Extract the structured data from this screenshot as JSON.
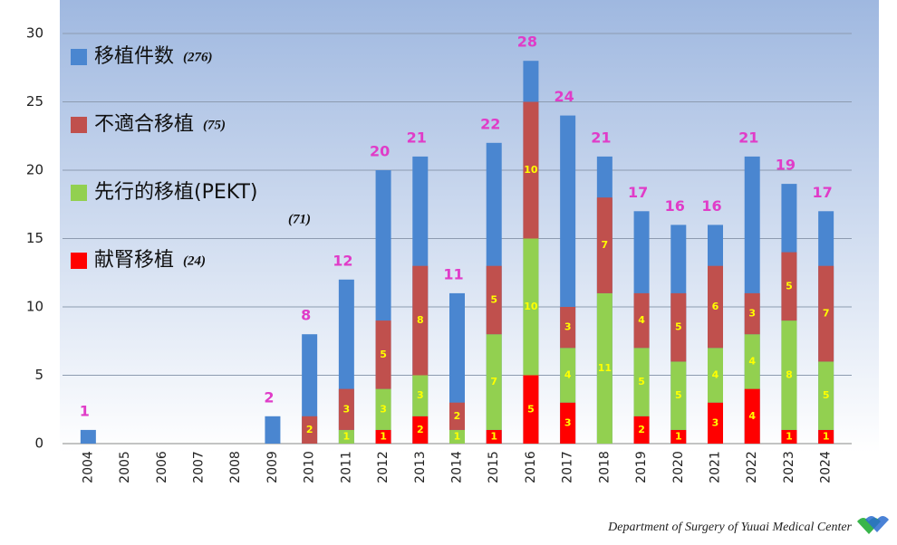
{
  "chart_data": {
    "type": "bar",
    "categories": [
      "2004",
      "2005",
      "2006",
      "2007",
      "2008",
      "2009",
      "2010",
      "2011",
      "2012",
      "2013",
      "2014",
      "2015",
      "2016",
      "2017",
      "2018",
      "2019",
      "2020",
      "2021",
      "2022",
      "2023",
      "2024"
    ],
    "total_series": {
      "name": "移植件数",
      "count_label": "(276)",
      "color": "#4a86d0",
      "values": [
        1,
        0,
        0,
        0,
        0,
        2,
        8,
        12,
        20,
        21,
        11,
        22,
        28,
        24,
        21,
        17,
        16,
        16,
        21,
        19,
        17
      ]
    },
    "series": [
      {
        "name": "献腎移植",
        "count_label": "(24)",
        "color": "#ff0000",
        "values": [
          0,
          0,
          0,
          0,
          0,
          0,
          0,
          0,
          1,
          2,
          0,
          1,
          5,
          3,
          0,
          2,
          1,
          3,
          4,
          1,
          1
        ]
      },
      {
        "name": "先行的移植(PEKT)",
        "count_label": "(71)",
        "color": "#92d050",
        "values": [
          0,
          0,
          0,
          0,
          0,
          0,
          0,
          1,
          3,
          3,
          1,
          7,
          10,
          4,
          11,
          5,
          5,
          4,
          4,
          8,
          5
        ]
      },
      {
        "name": "不適合移植",
        "count_label": "(75)",
        "color": "#c0504d",
        "values": [
          0,
          0,
          0,
          0,
          0,
          0,
          2,
          3,
          5,
          8,
          2,
          5,
          10,
          3,
          7,
          4,
          5,
          6,
          3,
          5,
          7
        ]
      }
    ],
    "ylim": [
      0,
      30
    ],
    "yticks": [
      0,
      5,
      10,
      15,
      20,
      25,
      30
    ],
    "grid": true,
    "footer": "Department of Surgery of Yuuai Medical Center"
  }
}
